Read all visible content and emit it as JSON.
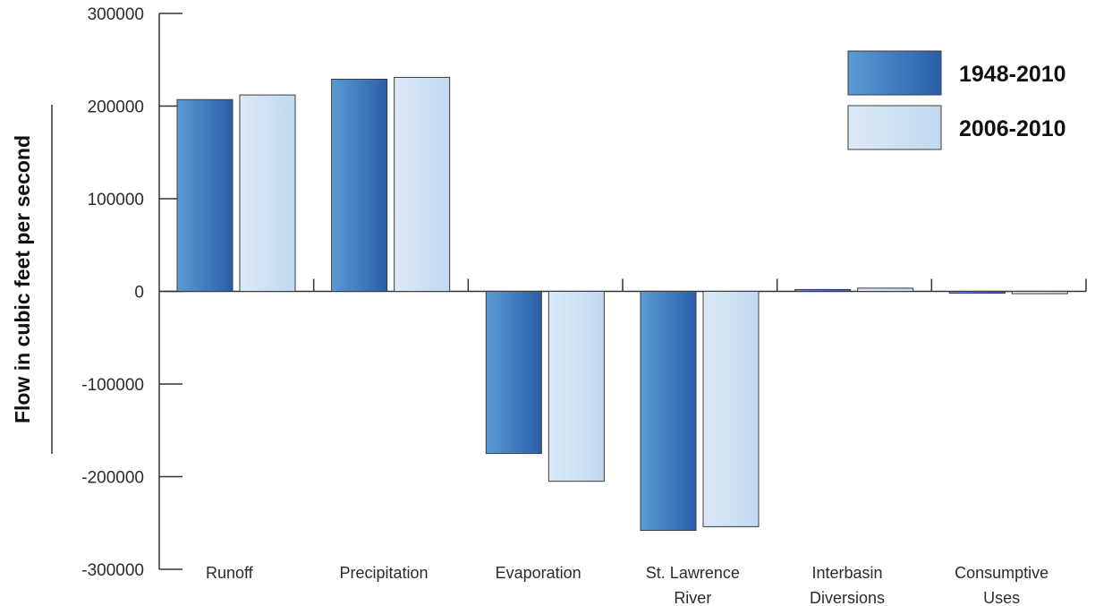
{
  "chart_data": {
    "type": "bar",
    "ylabel": "Flow in cubic feet per second",
    "ylim": [
      -300000,
      300000
    ],
    "y_ticks": [
      300000,
      200000,
      100000,
      0,
      -100000,
      -200000,
      -300000
    ],
    "y_tick_labels": [
      "300000",
      "200000",
      "100000",
      "0",
      "-100000",
      "-200000",
      "-300000"
    ],
    "categories": [
      [
        "Runoff"
      ],
      [
        "Precipitation"
      ],
      [
        "Evaporation"
      ],
      [
        "St. Lawrence",
        "River"
      ],
      [
        "Interbasin",
        "Diversions"
      ],
      [
        "Consumptive",
        "Uses"
      ]
    ],
    "series": [
      {
        "name": "1948-2010",
        "values": [
          207000,
          229000,
          -175000,
          -258000,
          2000,
          -2000
        ]
      },
      {
        "name": "2006-2010",
        "values": [
          212000,
          231000,
          -205000,
          -254000,
          3500,
          -2500
        ]
      }
    ],
    "grid": false,
    "legend_position": "top-right",
    "colors": {
      "series_1_start": "#5b9bd5",
      "series_1_end": "#2a5ea8",
      "series_2_start": "#dbe9f7",
      "series_2_end": "#c2d9f0",
      "outline": "#3b3b3b"
    }
  }
}
